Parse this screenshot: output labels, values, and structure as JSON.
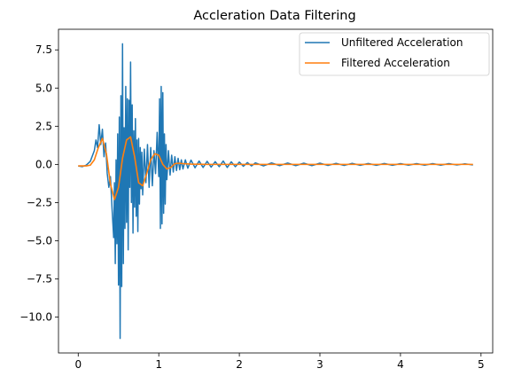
{
  "chart_data": {
    "type": "line",
    "title": "Accleration Data Filtering",
    "xlabel": "",
    "ylabel": "",
    "xlim": [
      -0.245,
      5.145
    ],
    "ylim": [
      -12.35,
      8.85
    ],
    "x_ticks": [
      0,
      1,
      2,
      3,
      4,
      5
    ],
    "x_tick_labels": [
      "0",
      "1",
      "2",
      "3",
      "4",
      "5"
    ],
    "y_ticks": [
      7.5,
      5.0,
      2.5,
      0.0,
      -2.5,
      -5.0,
      -7.5,
      -10.0
    ],
    "y_tick_labels": [
      "7.5",
      "5.0",
      "2.5",
      "0.0",
      "−2.5",
      "−5.0",
      "−7.5",
      "−10.0"
    ],
    "grid": false,
    "legend_position": "top-right",
    "series": [
      {
        "name": "Unfiltered Acceleration",
        "color": "#1f77b4",
        "x": [
          0.0,
          0.05,
          0.1,
          0.15,
          0.2,
          0.22,
          0.24,
          0.26,
          0.28,
          0.3,
          0.32,
          0.34,
          0.36,
          0.38,
          0.4,
          0.42,
          0.44,
          0.45,
          0.46,
          0.47,
          0.48,
          0.49,
          0.5,
          0.51,
          0.52,
          0.53,
          0.54,
          0.55,
          0.56,
          0.57,
          0.58,
          0.59,
          0.6,
          0.61,
          0.62,
          0.63,
          0.64,
          0.65,
          0.66,
          0.67,
          0.68,
          0.69,
          0.7,
          0.71,
          0.72,
          0.73,
          0.74,
          0.75,
          0.76,
          0.77,
          0.78,
          0.79,
          0.8,
          0.82,
          0.84,
          0.86,
          0.88,
          0.9,
          0.92,
          0.94,
          0.96,
          0.98,
          1.0,
          1.01,
          1.02,
          1.03,
          1.04,
          1.05,
          1.06,
          1.07,
          1.08,
          1.09,
          1.1,
          1.12,
          1.14,
          1.16,
          1.18,
          1.2,
          1.22,
          1.24,
          1.26,
          1.28,
          1.3,
          1.33,
          1.36,
          1.4,
          1.45,
          1.5,
          1.55,
          1.6,
          1.65,
          1.7,
          1.75,
          1.8,
          1.85,
          1.9,
          1.95,
          2.0,
          2.05,
          2.1,
          2.15,
          2.2,
          2.3,
          2.4,
          2.5,
          2.6,
          2.7,
          2.8,
          2.9,
          3.0,
          3.1,
          3.2,
          3.3,
          3.4,
          3.5,
          3.6,
          3.7,
          3.8,
          3.9,
          4.0,
          4.1,
          4.2,
          4.3,
          4.4,
          4.5,
          4.6,
          4.7,
          4.8,
          4.9
        ],
        "y": [
          -0.1,
          -0.15,
          -0.05,
          0.2,
          0.9,
          1.6,
          1.1,
          2.6,
          1.3,
          2.3,
          0.5,
          1.4,
          -0.6,
          -1.5,
          -0.8,
          -2.9,
          -4.8,
          -1.2,
          -6.5,
          0.3,
          -5.2,
          2.0,
          -7.9,
          3.1,
          -11.4,
          4.5,
          -8.0,
          7.9,
          -6.5,
          2.4,
          -4.2,
          5.1,
          -3.8,
          4.3,
          -5.6,
          4.2,
          -1.5,
          6.7,
          -2.5,
          3.9,
          -4.5,
          2.2,
          -2.8,
          3.0,
          -3.4,
          1.6,
          -4.4,
          1.7,
          -2.6,
          1.1,
          -1.6,
          0.8,
          -2.0,
          1.0,
          -1.2,
          1.3,
          -1.5,
          1.1,
          -1.4,
          0.9,
          -0.6,
          2.1,
          -0.8,
          4.3,
          -4.2,
          5.1,
          -3.9,
          4.7,
          -3.2,
          2.0,
          -2.6,
          1.3,
          -1.0,
          0.9,
          -0.7,
          0.6,
          -0.5,
          0.5,
          -0.4,
          0.4,
          -0.35,
          0.3,
          -0.3,
          0.3,
          -0.25,
          0.28,
          -0.22,
          0.22,
          -0.2,
          0.2,
          -0.18,
          0.18,
          -0.15,
          0.22,
          -0.2,
          0.17,
          -0.15,
          0.15,
          -0.12,
          0.12,
          -0.1,
          0.1,
          -0.1,
          0.1,
          -0.08,
          0.09,
          -0.08,
          0.08,
          -0.08,
          0.08,
          -0.07,
          0.07,
          -0.07,
          0.07,
          -0.06,
          0.06,
          -0.06,
          0.06,
          -0.06,
          0.05,
          -0.05,
          0.05,
          -0.05,
          0.05,
          -0.05,
          0.05,
          -0.04,
          0.04,
          -0.04
        ]
      },
      {
        "name": "Filtered Acceleration",
        "color": "#ff7f0e",
        "x": [
          0.0,
          0.1,
          0.15,
          0.2,
          0.25,
          0.3,
          0.35,
          0.4,
          0.45,
          0.5,
          0.55,
          0.6,
          0.65,
          0.7,
          0.75,
          0.8,
          0.85,
          0.9,
          0.95,
          1.0,
          1.05,
          1.1,
          1.15,
          1.2,
          1.25,
          1.3,
          1.4,
          1.5,
          1.6,
          1.8,
          2.0,
          2.5,
          3.0,
          3.5,
          4.0,
          4.5,
          4.9
        ],
        "y": [
          -0.1,
          -0.1,
          -0.05,
          0.3,
          1.1,
          1.7,
          0.7,
          -1.3,
          -2.3,
          -1.5,
          0.4,
          1.6,
          1.8,
          0.5,
          -1.2,
          -1.4,
          -0.6,
          0.3,
          0.7,
          0.6,
          0.0,
          -0.3,
          -0.2,
          0.05,
          0.08,
          0.05,
          0.02,
          0.01,
          0.0,
          0.0,
          0.0,
          0.0,
          0.0,
          0.0,
          0.0,
          0.0,
          0.0
        ]
      }
    ]
  }
}
